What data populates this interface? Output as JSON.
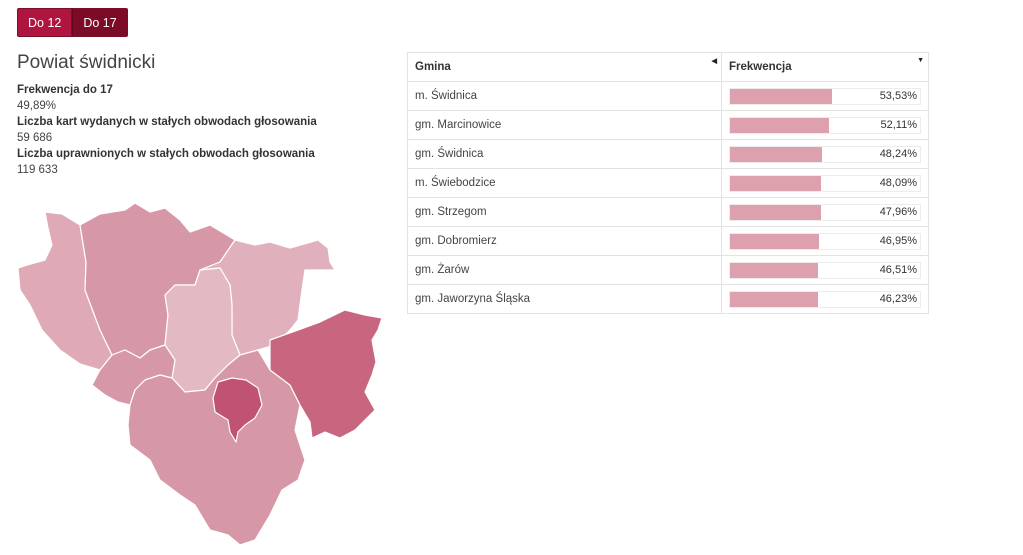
{
  "tabs": [
    {
      "label": "Do 12",
      "active": false
    },
    {
      "label": "Do 17",
      "active": true
    }
  ],
  "region": {
    "title": "Powiat świdnicki",
    "stats": [
      {
        "label": "Frekwencja do 17",
        "value": "49,89%"
      },
      {
        "label": "Liczba kart wydanych w stałych obwodach głosowania",
        "value": "59 686"
      },
      {
        "label": "Liczba uprawnionych w stałych obwodach głosowania",
        "value": "119 633"
      }
    ]
  },
  "table": {
    "headers": {
      "gmina": "Gmina",
      "frekwencja": "Frekwencja"
    },
    "rows": [
      {
        "name": "m. Świdnica",
        "value": "53,53%",
        "pct": 53.53
      },
      {
        "name": "gm. Marcinowice",
        "value": "52,11%",
        "pct": 52.11
      },
      {
        "name": "gm. Świdnica",
        "value": "48,24%",
        "pct": 48.24
      },
      {
        "name": "m. Świebodzice",
        "value": "48,09%",
        "pct": 48.09
      },
      {
        "name": "gm. Strzegom",
        "value": "47,96%",
        "pct": 47.96
      },
      {
        "name": "gm. Dobromierz",
        "value": "46,95%",
        "pct": 46.95
      },
      {
        "name": "gm. Żarów",
        "value": "46,51%",
        "pct": 46.51
      },
      {
        "name": "gm. Jaworzyna Śląska",
        "value": "46,23%",
        "pct": 46.23
      }
    ]
  },
  "colors": {
    "accent": "#b0153f",
    "accent_dark": "#7d0b27",
    "bar": "#dda0ad"
  }
}
